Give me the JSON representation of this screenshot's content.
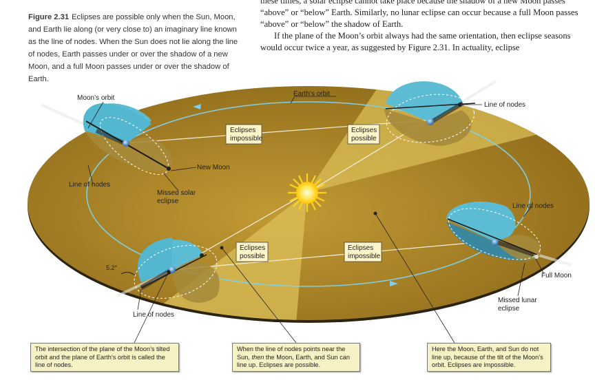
{
  "caption": {
    "figure": "Figure 2.31",
    "text": "Eclipses are possible only when the Sun, Moon, and Earth lie along (or very close to) an imaginary line known as the line of nodes. When the Sun does not lie along the line of nodes, Earth passes under or over the shadow of a new Moon, and a full Moon passes under or over the shadow of Earth."
  },
  "body_text": {
    "p1": "these times, a solar eclipse cannot take place because the shadow of a new Moon passes “above” or “below” Earth. Similarly, no lunar eclipse can occur because a full Moon passes “above” or “below” the shadow of Earth.",
    "p2": "If the plane of the Moon’s orbit always had the same orientation, then eclipse seasons would occur twice a year, as suggested by Figure 2.31. In actuality, eclipse"
  },
  "labels": {
    "moons_orbit": "Moon’s orbit",
    "earths_orbit": "Earth’s orbit",
    "line_of_nodes_tr": "Line of nodes",
    "line_of_nodes_left": "Line of nodes",
    "line_of_nodes_right": "Line of nodes",
    "line_of_nodes_bottom": "Line of nodes",
    "new_moon": "New Moon",
    "missed_solar_1": "Missed solar",
    "missed_solar_2": "eclipse",
    "full_moon": "Full Moon",
    "missed_lunar_1": "Missed lunar",
    "missed_lunar_2": "eclipse",
    "angle": "5.2°",
    "box1_1": "Eclipses",
    "box1_2": "impossible",
    "box2_1": "Eclipses",
    "box2_2": "possible",
    "box3_1": "Eclipses",
    "box3_2": "possible",
    "box4_1": "Eclipses",
    "box4_2": "impossible"
  },
  "notes": {
    "left": "The intersection of the plane of the Moon’s tilted orbit and the plane of Earth’s orbit is called the line of nodes.",
    "middle_pre": "When the line of nodes points near the Sun, ",
    "middle_em": "then",
    "middle_post": " the Moon, Earth, and Sun can line up. Eclipses are possible.",
    "right": "Here the Moon, Earth, and Sun do not line up, because of the tilt of the Moon’s orbit. Eclipses are impossible."
  },
  "colors": {
    "plane_dark": "#a07a1f",
    "plane_light": "#d7b54a",
    "orbit": "#6cc3de",
    "moon_orbit_disk": "#53b7cf",
    "note_bg": "#f7f1c6",
    "sun": "#ffd21a"
  }
}
